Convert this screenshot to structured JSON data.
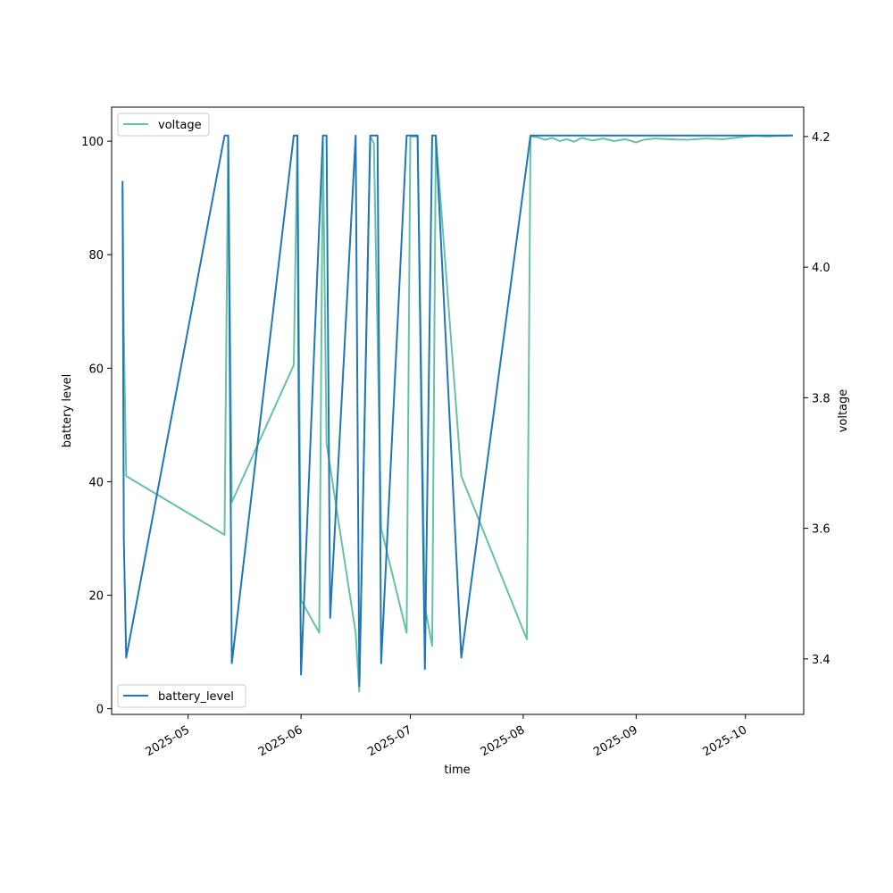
{
  "chart_data": {
    "type": "line",
    "xlabel": "time",
    "ylabel": "battery level",
    "y2label": "voltage",
    "xlim": [
      "2025-04-10",
      "2025-10-17"
    ],
    "ylim": [
      -1,
      106
    ],
    "y2lim": [
      3.315,
      4.245
    ],
    "x_ticks": [
      "2025-05-01",
      "2025-06-01",
      "2025-07-01",
      "2025-08-01",
      "2025-09-01",
      "2025-10-01"
    ],
    "x_tick_labels": [
      "2025-05",
      "2025-06",
      "2025-07",
      "2025-08",
      "2025-09",
      "2025-10"
    ],
    "y_ticks": [
      0,
      20,
      40,
      60,
      80,
      100
    ],
    "y2_ticks": [
      3.4,
      3.6,
      3.8,
      4.0,
      4.2
    ],
    "y2_tick_labels": [
      "3.4",
      "3.6",
      "3.8",
      "4.0",
      "4.2"
    ],
    "grid": false,
    "colors": {
      "battery_level": "#1f77b4",
      "voltage": "#66c2a5"
    },
    "legends": [
      {
        "series": "voltage",
        "label": "voltage",
        "placement": "upper-left"
      },
      {
        "series": "battery_level",
        "label": "battery_level",
        "placement": "lower-left"
      }
    ],
    "series": [
      {
        "name": "battery_level",
        "axis": "left",
        "points": [
          [
            "2025-04-13",
            93
          ],
          [
            "2025-04-13",
            30
          ],
          [
            "2025-04-14",
            9
          ],
          [
            "2025-05-11",
            101
          ],
          [
            "2025-05-12",
            101
          ],
          [
            "2025-05-13",
            8
          ],
          [
            "2025-05-30",
            101
          ],
          [
            "2025-05-31",
            101
          ],
          [
            "2025-05-31",
            55
          ],
          [
            "2025-06-01",
            6
          ],
          [
            "2025-06-07",
            101
          ],
          [
            "2025-06-08",
            101
          ],
          [
            "2025-06-09",
            16
          ],
          [
            "2025-06-16",
            101
          ],
          [
            "2025-06-17",
            4
          ],
          [
            "2025-06-20",
            101
          ],
          [
            "2025-06-22",
            101
          ],
          [
            "2025-06-23",
            8
          ],
          [
            "2025-06-30",
            101
          ],
          [
            "2025-07-03",
            101
          ],
          [
            "2025-07-05",
            7
          ],
          [
            "2025-07-07",
            101
          ],
          [
            "2025-07-08",
            101
          ],
          [
            "2025-07-15",
            9
          ],
          [
            "2025-08-03",
            101
          ],
          [
            "2025-10-14",
            101
          ]
        ]
      },
      {
        "name": "voltage",
        "axis": "right",
        "points": [
          [
            "2025-04-13",
            4.12
          ],
          [
            "2025-04-13",
            3.9
          ],
          [
            "2025-04-14",
            3.68
          ],
          [
            "2025-05-11",
            3.59
          ],
          [
            "2025-05-12",
            4.2
          ],
          [
            "2025-05-13",
            3.64
          ],
          [
            "2025-05-30",
            3.85
          ],
          [
            "2025-05-31",
            4.2
          ],
          [
            "2025-06-01",
            3.49
          ],
          [
            "2025-06-06",
            3.44
          ],
          [
            "2025-06-07",
            4.2
          ],
          [
            "2025-06-08",
            3.73
          ],
          [
            "2025-06-16",
            3.44
          ],
          [
            "2025-06-17",
            3.35
          ],
          [
            "2025-06-20",
            4.2
          ],
          [
            "2025-06-21",
            4.19
          ],
          [
            "2025-06-23",
            3.6
          ],
          [
            "2025-06-30",
            3.44
          ],
          [
            "2025-07-01",
            4.2
          ],
          [
            "2025-07-03",
            4.2
          ],
          [
            "2025-07-05",
            3.48
          ],
          [
            "2025-07-07",
            3.42
          ],
          [
            "2025-07-08",
            4.2
          ],
          [
            "2025-07-15",
            3.68
          ],
          [
            "2025-08-02",
            3.43
          ],
          [
            "2025-08-03",
            4.2
          ],
          [
            "2025-08-05",
            4.199
          ],
          [
            "2025-08-07",
            4.195
          ],
          [
            "2025-08-09",
            4.198
          ],
          [
            "2025-08-11",
            4.193
          ],
          [
            "2025-08-13",
            4.196
          ],
          [
            "2025-08-15",
            4.192
          ],
          [
            "2025-08-17",
            4.198
          ],
          [
            "2025-08-20",
            4.194
          ],
          [
            "2025-08-23",
            4.197
          ],
          [
            "2025-08-26",
            4.193
          ],
          [
            "2025-08-29",
            4.196
          ],
          [
            "2025-09-01",
            4.191
          ],
          [
            "2025-09-03",
            4.195
          ],
          [
            "2025-09-06",
            4.197
          ],
          [
            "2025-09-10",
            4.196
          ],
          [
            "2025-09-15",
            4.195
          ],
          [
            "2025-09-20",
            4.197
          ],
          [
            "2025-09-25",
            4.196
          ],
          [
            "2025-09-28",
            4.198
          ],
          [
            "2025-10-01",
            4.2
          ],
          [
            "2025-10-04",
            4.201
          ],
          [
            "2025-10-07",
            4.2
          ],
          [
            "2025-10-10",
            4.201
          ],
          [
            "2025-10-14",
            4.202
          ]
        ]
      }
    ]
  }
}
